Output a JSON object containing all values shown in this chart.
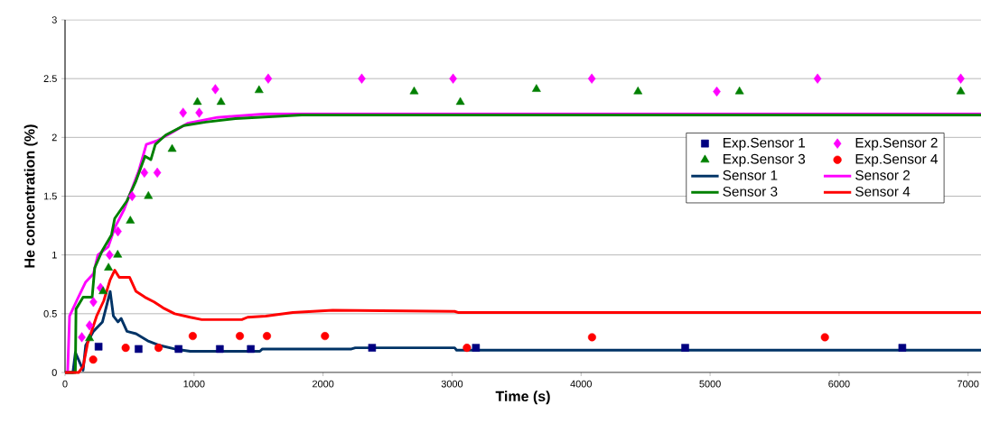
{
  "chart_data": {
    "type": "line",
    "xlabel": "Time (s)",
    "ylabel": "He concentration (%)",
    "xlim": [
      0,
      7100
    ],
    "ylim": [
      0,
      3
    ],
    "xticks": [
      0,
      1000,
      2000,
      3000,
      4000,
      5000,
      6000,
      7000
    ],
    "yticks": [
      0,
      0.5,
      1,
      1.5,
      2,
      2.5,
      3
    ],
    "grid": "y",
    "legend": "right",
    "series": [
      {
        "name": "Exp.Sensor 1",
        "type": "scatter",
        "marker": "square",
        "color": "#000080",
        "x": [
          260,
          570,
          880,
          1200,
          1440,
          2380,
          3185,
          4807,
          6490
        ],
        "values": [
          0.22,
          0.2,
          0.2,
          0.2,
          0.2,
          0.21,
          0.21,
          0.21,
          0.21
        ]
      },
      {
        "name": "Exp.Sensor 2",
        "type": "scatter",
        "marker": "diamond",
        "color": "#ff00ff",
        "x": [
          130,
          190,
          220,
          275,
          345,
          410,
          520,
          615,
          715,
          915,
          1040,
          1165,
          1575,
          2300,
          3008,
          4083,
          5052,
          5833,
          6943
        ],
        "values": [
          0.3,
          0.4,
          0.6,
          0.72,
          1.0,
          1.2,
          1.5,
          1.7,
          1.7,
          2.21,
          2.21,
          2.41,
          2.5,
          2.5,
          2.5,
          2.5,
          2.39,
          2.5,
          2.5
        ]
      },
      {
        "name": "Exp.Sensor 3",
        "type": "scatter",
        "marker": "triangle",
        "color": "#008000",
        "x": [
          190,
          295,
          337,
          408,
          506,
          646,
          830,
          1026,
          1209,
          1504,
          2706,
          3064,
          3654,
          4441,
          5228,
          6943
        ],
        "values": [
          0.29,
          0.69,
          0.89,
          1.0,
          1.29,
          1.5,
          1.9,
          2.3,
          2.3,
          2.4,
          2.39,
          2.3,
          2.41,
          2.39,
          2.39,
          2.39
        ]
      },
      {
        "name": "Exp.Sensor 4",
        "type": "scatter",
        "marker": "circle",
        "color": "#ff0000",
        "x": [
          218,
          470,
          725,
          990,
          1355,
          1565,
          2015,
          3115,
          4085,
          5890
        ],
        "values": [
          0.11,
          0.21,
          0.21,
          0.31,
          0.31,
          0.31,
          0.31,
          0.21,
          0.3,
          0.3
        ]
      },
      {
        "name": "Sensor 1",
        "marker": "none",
        "color": "#003366",
        "x": [
          0,
          61,
          80,
          140,
          160,
          220,
          290,
          325,
          350,
          375,
          410,
          435,
          480,
          550,
          640,
          735,
          850,
          970,
          1510,
          1530,
          2220,
          2250,
          3020,
          3035,
          7100
        ],
        "values": [
          0,
          0,
          0.17,
          0.02,
          0.23,
          0.35,
          0.43,
          0.58,
          0.69,
          0.48,
          0.43,
          0.46,
          0.35,
          0.33,
          0.27,
          0.23,
          0.2,
          0.18,
          0.18,
          0.2,
          0.2,
          0.21,
          0.21,
          0.19,
          0.19
        ]
      },
      {
        "name": "Sensor 2",
        "marker": "none",
        "color": "#ff00ff",
        "x": [
          0,
          20,
          35,
          90,
          160,
          220,
          255,
          335,
          385,
          455,
          525,
          570,
          630,
          710,
          810,
          950,
          1180,
          1555,
          7100
        ],
        "values": [
          0,
          0,
          0.48,
          0.61,
          0.77,
          0.84,
          1.0,
          1.07,
          1.23,
          1.38,
          1.58,
          1.71,
          1.94,
          1.97,
          2.03,
          2.12,
          2.17,
          2.2,
          2.2
        ]
      },
      {
        "name": "Sensor 3",
        "marker": "none",
        "color": "#008000",
        "x": [
          0,
          80,
          85,
          140,
          210,
          230,
          290,
          360,
          385,
          480,
          550,
          620,
          665,
          700,
          780,
          920,
          1090,
          1320,
          1835,
          7100
        ],
        "values": [
          0,
          0,
          0.54,
          0.64,
          0.64,
          0.89,
          1.04,
          1.17,
          1.31,
          1.46,
          1.63,
          1.84,
          1.81,
          1.94,
          2.02,
          2.1,
          2.13,
          2.16,
          2.19,
          2.19
        ]
      },
      {
        "name": "Sensor 4",
        "marker": "none",
        "color": "#ff0000",
        "x": [
          0,
          105,
          140,
          175,
          245,
          300,
          350,
          385,
          420,
          500,
          550,
          620,
          690,
          760,
          850,
          970,
          1060,
          1370,
          1415,
          1555,
          1765,
          2075,
          3020,
          3050,
          7100
        ],
        "values": [
          0,
          0,
          0.05,
          0.25,
          0.48,
          0.61,
          0.79,
          0.87,
          0.81,
          0.81,
          0.69,
          0.64,
          0.6,
          0.55,
          0.5,
          0.47,
          0.45,
          0.45,
          0.47,
          0.48,
          0.51,
          0.53,
          0.52,
          0.51,
          0.51
        ]
      }
    ]
  }
}
